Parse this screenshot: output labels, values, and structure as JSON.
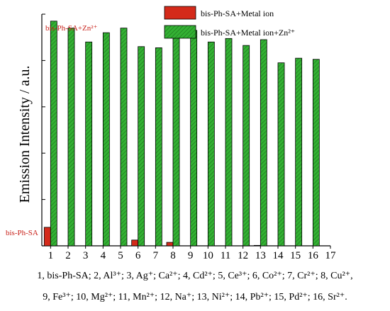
{
  "chart_data": {
    "type": "bar",
    "ylabel": "Emission Intensity / a.u.",
    "xlim": [
      0.5,
      17
    ],
    "ylim": [
      0,
      100
    ],
    "x_ticks": [
      "1",
      "2",
      "3",
      "4",
      "5",
      "6",
      "7",
      "8",
      "9",
      "10",
      "11",
      "12",
      "13",
      "14",
      "15",
      "16",
      "17"
    ],
    "categories": [
      "1",
      "2",
      "3",
      "4",
      "5",
      "6",
      "7",
      "8",
      "9",
      "10",
      "11",
      "12",
      "13",
      "14",
      "15",
      "16"
    ],
    "series": [
      {
        "name": "bis-Ph-SA+Metal ion",
        "color": "#d42a1a",
        "pattern": "solid",
        "values": [
          8,
          0,
          0,
          0,
          0,
          2.5,
          0,
          1.5,
          0,
          0,
          0,
          0,
          0.2,
          0,
          0,
          0
        ]
      },
      {
        "name": "bis-Ph-SA+Metal ion+Zn²⁺",
        "color": "#33b233",
        "pattern": "hatched",
        "values": [
          97,
          94,
          88,
          92,
          94,
          86,
          85.5,
          90,
          93,
          88,
          89.5,
          86.5,
          89,
          79,
          81,
          80.5
        ]
      }
    ],
    "legend_position": "top-right",
    "annotations": [
      "bis-Ph-SA+Zn²⁺",
      "bis-Ph-SA"
    ],
    "grid": false
  },
  "caption": {
    "line1": "1, bis-Ph-SA; 2, Al³⁺; 3, Ag⁺; Ca²⁺; 4, Cd²⁺; 5, Ce³⁺; 6, Co²⁺; 7, Cr²⁺; 8, Cu²⁺,",
    "line2": "9, Fe³⁺; 10, Mg²⁺; 11, Mn²⁺; 12, Na⁺; 13, Ni²⁺; 14, Pb²⁺; 15, Pd²⁺; 16, Sr²⁺."
  }
}
